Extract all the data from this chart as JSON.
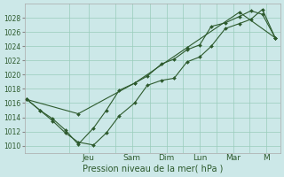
{
  "title": "",
  "xlabel": "Pression niveau de la mer( hPa )",
  "bg_color": "#cce8e8",
  "grid_color": "#99ccbb",
  "line_color": "#2d5a2d",
  "ylim": [
    1009,
    1030
  ],
  "yticks": [
    1010,
    1012,
    1014,
    1016,
    1018,
    1020,
    1022,
    1024,
    1026,
    1028
  ],
  "day_labels": [
    "Jeu",
    "Sam",
    "Dim",
    "Lun",
    "Mar",
    "M"
  ],
  "day_x": [
    0.25,
    0.42,
    0.555,
    0.685,
    0.815,
    0.945
  ],
  "vline_x": [
    0.175,
    0.355,
    0.49,
    0.62,
    0.75,
    0.88
  ],
  "line1_x": [
    0.01,
    0.06,
    0.11,
    0.16,
    0.21,
    0.27,
    0.32,
    0.37,
    0.43,
    0.48,
    0.535,
    0.585,
    0.635,
    0.685,
    0.73,
    0.785,
    0.84,
    0.885,
    0.93,
    0.98
  ],
  "line1_y": [
    1016.5,
    1015.0,
    1013.5,
    1011.8,
    1010.5,
    1010.1,
    1011.8,
    1014.2,
    1016.0,
    1018.5,
    1019.2,
    1019.5,
    1021.8,
    1022.5,
    1024.0,
    1026.5,
    1027.2,
    1027.8,
    1029.2,
    1025.2
  ],
  "line2_x": [
    0.01,
    0.06,
    0.11,
    0.16,
    0.21,
    0.27,
    0.32,
    0.37,
    0.43,
    0.48,
    0.535,
    0.585,
    0.635,
    0.685,
    0.73,
    0.785,
    0.84,
    0.885,
    0.93,
    0.98
  ],
  "line2_y": [
    1016.5,
    1015.0,
    1013.8,
    1012.2,
    1010.2,
    1012.5,
    1015.0,
    1017.8,
    1018.8,
    1019.8,
    1021.5,
    1022.2,
    1023.5,
    1024.2,
    1026.8,
    1027.3,
    1028.2,
    1029.0,
    1028.5,
    1025.2
  ],
  "line3_x": [
    0.01,
    0.21,
    0.43,
    0.635,
    0.84,
    0.98
  ],
  "line3_y": [
    1016.5,
    1014.5,
    1018.8,
    1023.8,
    1028.8,
    1025.2
  ]
}
